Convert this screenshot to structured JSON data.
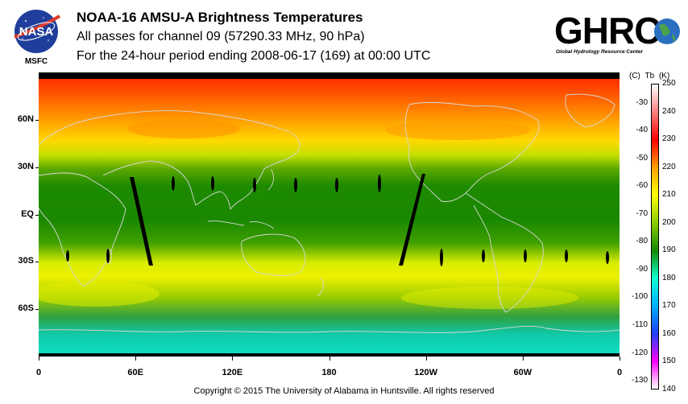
{
  "header": {
    "logo_text": "NASA",
    "center_label": "MSFC",
    "title": "NOAA-16 AMSU-A Brightness Temperatures",
    "subtitle": "All passes for channel 09 (57290.33 MHz, 90 hPa)",
    "period": "For the 24-hour period ending 2008-06-17 (169) at 00:00 UTC",
    "brand_logo": "GHRC",
    "brand_subtitle": "Global Hydrology Resource Center"
  },
  "map": {
    "lat_labels": [
      {
        "label": "60N",
        "lat": 60
      },
      {
        "label": "30N",
        "lat": 30
      },
      {
        "label": "EQ",
        "lat": 0
      },
      {
        "label": "30S",
        "lat": -30
      },
      {
        "label": "60S",
        "lat": -60
      }
    ],
    "lon_labels": [
      {
        "label": "0",
        "lon": 0
      },
      {
        "label": "60E",
        "lon": 60
      },
      {
        "label": "120E",
        "lon": 120
      },
      {
        "label": "180",
        "lon": 180
      },
      {
        "label": "120W",
        "lon": 240
      },
      {
        "label": "60W",
        "lon": 300
      },
      {
        "label": "0",
        "lon": 360
      }
    ]
  },
  "colorbar": {
    "units": [
      "(C)",
      "Tb",
      "(K)"
    ],
    "kelvin_labels": [
      250,
      240,
      230,
      220,
      210,
      200,
      190,
      180,
      170,
      160,
      150,
      140
    ],
    "celsius_labels": [
      -30,
      -40,
      -50,
      -60,
      -70,
      -80,
      -90,
      -100,
      -110,
      -120,
      -130
    ],
    "colors": [
      "#ffffff",
      "#ff8080",
      "#ff0000",
      "#ffa000",
      "#ffff00",
      "#8ccc00",
      "#138a00",
      "#10ffd0",
      "#00b0ff",
      "#2040ff",
      "#ff00ff",
      "#ffffff"
    ]
  },
  "footer": {
    "copyright": "Copyright © 2015 The University of Alabama in Huntsville.  All rights reserved"
  }
}
